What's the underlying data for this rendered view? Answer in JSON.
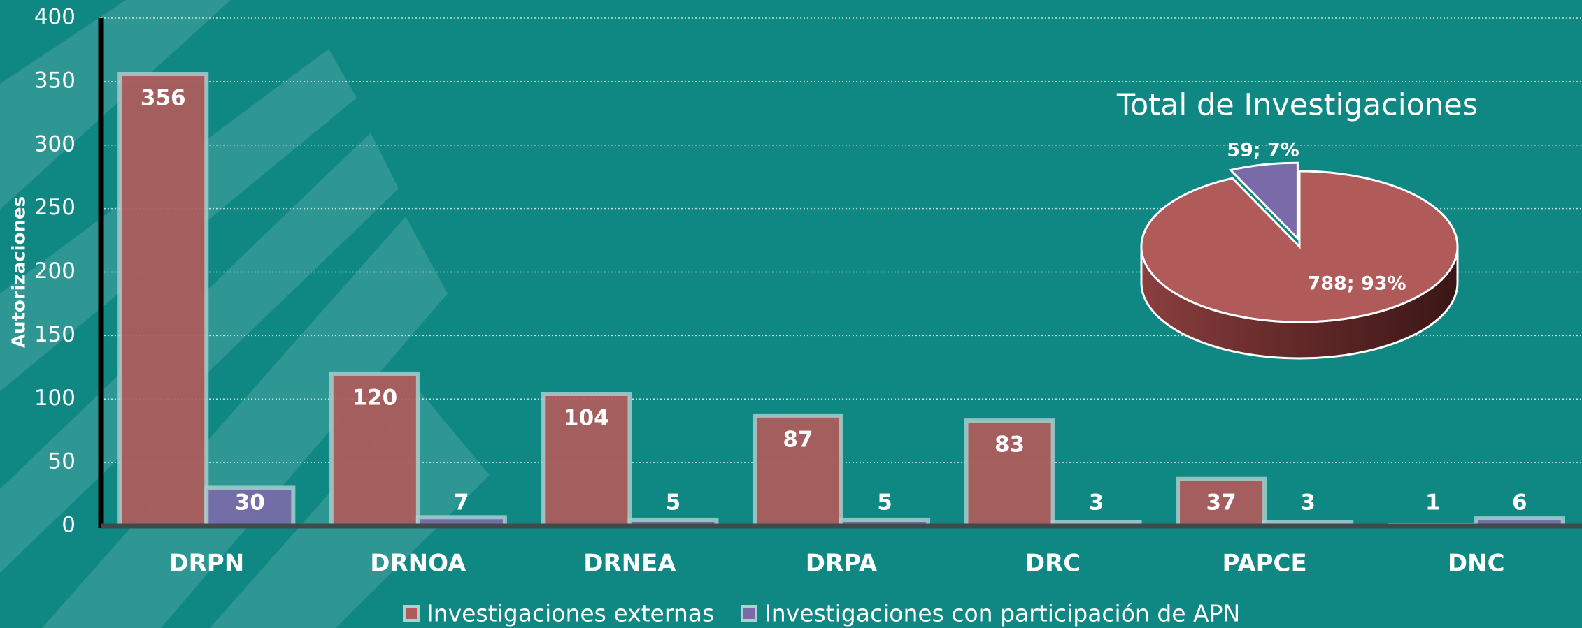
{
  "chart_data": [
    {
      "type": "bar",
      "y_label": "Autorizaciones",
      "categories": [
        "DRPN",
        "DRNOA",
        "DRNEA",
        "DRPA",
        "DRC",
        "PAPCE",
        "DNC"
      ],
      "series": [
        {
          "name": "Investigaciones externas",
          "color": "#b05a5a",
          "values": [
            356,
            120,
            104,
            87,
            83,
            37,
            1
          ]
        },
        {
          "name": "Investigaciones con participación de APN",
          "color": "#7a6aa8",
          "values": [
            30,
            7,
            5,
            5,
            3,
            3,
            6
          ]
        }
      ],
      "ylim": [
        0,
        400
      ],
      "yticks": [
        0,
        50,
        100,
        150,
        200,
        250,
        300,
        350,
        400
      ],
      "grid": true,
      "legend": "bottom"
    },
    {
      "type": "pie",
      "title": "Total de Investigaciones",
      "values": [
        788,
        59
      ],
      "value_labels": [
        "788; 93%",
        "59; 7%"
      ],
      "colors": [
        "#b05a5a",
        "#7a6aa8"
      ]
    }
  ]
}
